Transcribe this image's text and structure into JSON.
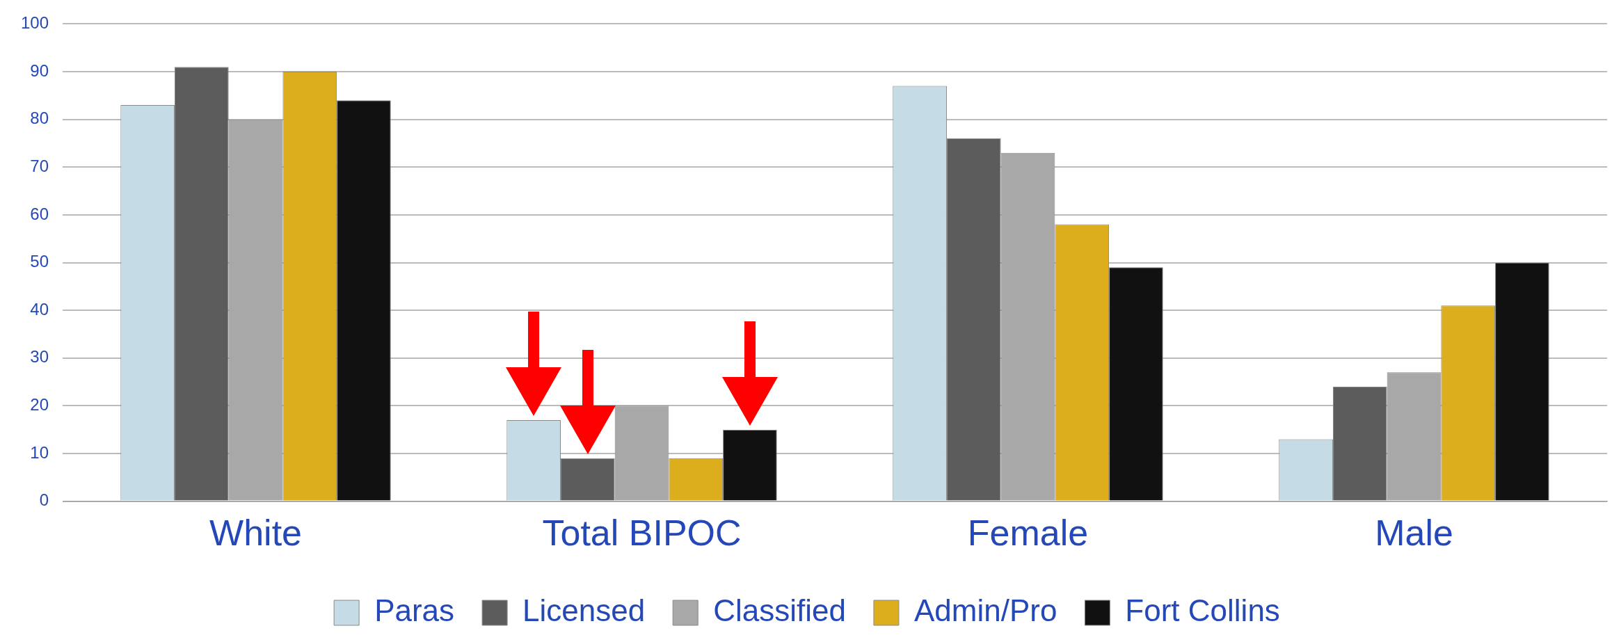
{
  "chart_data": {
    "type": "bar",
    "categories": [
      "White",
      "Total BIPOC",
      "Female",
      "Male"
    ],
    "series": [
      {
        "name": "Paras",
        "color": "#c5dbe6",
        "values": [
          83,
          17,
          87,
          13
        ]
      },
      {
        "name": "Licensed",
        "color": "#5c5c5c",
        "values": [
          91,
          9,
          76,
          24
        ]
      },
      {
        "name": "Classified",
        "color": "#a8a8a8",
        "values": [
          80,
          20,
          73,
          27
        ]
      },
      {
        "name": "Admin/Pro",
        "color": "#dcae1e",
        "values": [
          90,
          9,
          58,
          41
        ]
      },
      {
        "name": "Fort Collins",
        "color": "#111111",
        "values": [
          84,
          15,
          49,
          50
        ]
      }
    ],
    "ylim": [
      0,
      100
    ],
    "yticks": [
      0,
      10,
      20,
      30,
      40,
      50,
      60,
      70,
      80,
      90,
      100
    ],
    "grid": "y",
    "legend": "bottom"
  }
}
